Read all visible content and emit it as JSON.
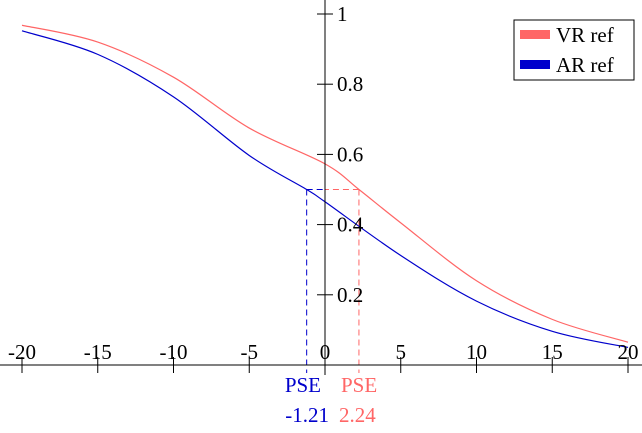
{
  "chart_data": {
    "type": "line",
    "xlim": [
      -20,
      20
    ],
    "ylim": [
      0,
      1
    ],
    "x_ticks": [
      -20,
      -15,
      -10,
      -5,
      0,
      5,
      10,
      15,
      20
    ],
    "x_tick_labels": [
      "-20",
      "-15",
      "-10",
      "-5",
      "0",
      "5",
      "10",
      "15",
      "20"
    ],
    "y_ticks": [
      0.2,
      0.4,
      0.6,
      0.8,
      1
    ],
    "y_tick_labels": [
      "0.2",
      "0.4",
      "0.6",
      "0.8",
      "1"
    ],
    "grid": false,
    "legend_position": "top-right",
    "series": [
      {
        "name": "VR ref",
        "color": "#ff6666",
        "pse": 2.24,
        "x": [
          -20,
          -15,
          -10,
          -5,
          0,
          2.24,
          5,
          10,
          15,
          20
        ],
        "y": [
          0.968,
          0.92,
          0.82,
          0.675,
          0.573,
          0.5,
          0.405,
          0.24,
          0.13,
          0.065
        ]
      },
      {
        "name": "AR ref",
        "color": "#0000cc",
        "pse": -1.21,
        "x": [
          -20,
          -15,
          -10,
          -5,
          -1.21,
          0,
          5,
          10,
          15,
          20
        ],
        "y": [
          0.952,
          0.885,
          0.764,
          0.597,
          0.5,
          0.465,
          0.312,
          0.182,
          0.096,
          0.05
        ]
      }
    ],
    "annotations": [
      {
        "label": "PSE",
        "value": "-1.21",
        "color": "#0000cc"
      },
      {
        "label": "PSE",
        "value": "2.24",
        "color": "#ff6666"
      }
    ]
  }
}
